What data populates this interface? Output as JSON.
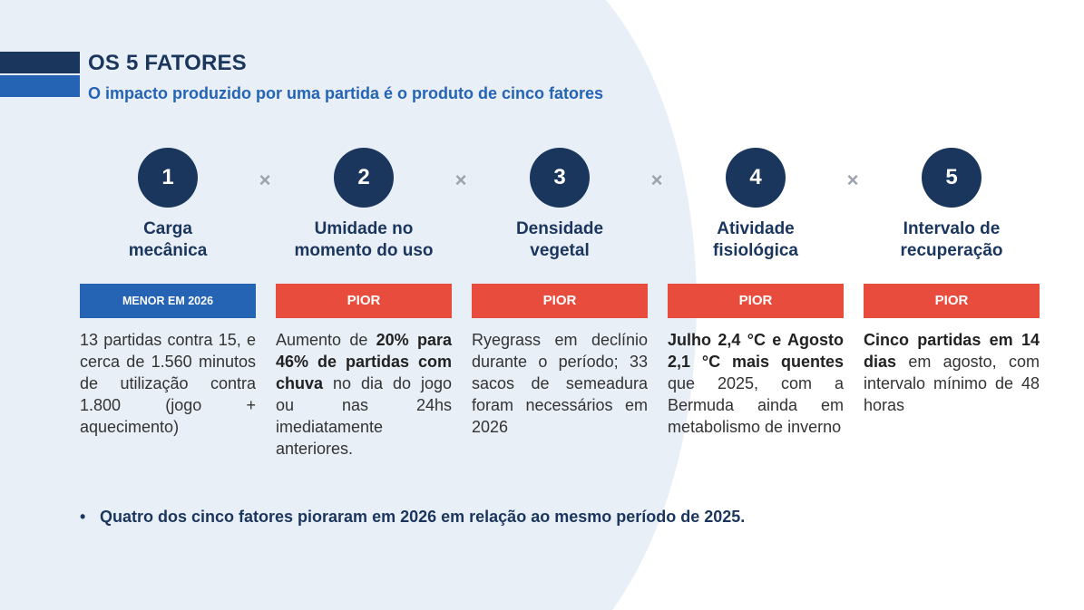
{
  "header": {
    "title": "OS 5 FATORES",
    "subtitle": "O impacto produzido por uma partida é o produto de cinco fatores"
  },
  "colors": {
    "navy": "#1b365d",
    "blue": "#2563b5",
    "red": "#e84c3d",
    "bg_light": "#e9eff7"
  },
  "operator": "×",
  "factors": [
    {
      "number": "1",
      "name_l1": "Carga",
      "name_l2": "mecânica",
      "badge": "MENOR EM 2026",
      "desc": [
        "13 partidas contra 15, e cerca de 1.560 minutos de utilização contra 1.800 (jogo + aquecimento)"
      ]
    },
    {
      "number": "2",
      "name_l1": "Umidade no",
      "name_l2": "momento do uso",
      "badge": "PIOR",
      "desc": [
        "Aumento de ",
        "20% para 46% de partidas com chuva",
        " no dia do jogo ou nas 24hs imediatamente anteriores."
      ]
    },
    {
      "number": "3",
      "name_l1": "Densidade",
      "name_l2": "vegetal",
      "badge": "PIOR",
      "desc": [
        "Ryegrass em declínio durante o período; 33 sacos de semeadura foram necessários em 2026"
      ]
    },
    {
      "number": "4",
      "name_l1": "Atividade",
      "name_l2": "fisiológica",
      "badge": "PIOR",
      "desc": [
        "Julho 2,4 °C e Agosto 2,1 °C mais quentes",
        " que 2025, com a Bermuda ainda em metabolismo de inverno"
      ]
    },
    {
      "number": "5",
      "name_l1": "Intervalo de",
      "name_l2": "recuperação",
      "badge": "PIOR",
      "desc": [
        "Cinco partidas em 14 dias",
        " em agosto, com intervalo mínimo de 48 horas"
      ]
    }
  ],
  "conclusion": {
    "bullet": "•",
    "text": "Quatro dos cinco fatores pioraram em 2026 em relação ao mesmo período de 2025."
  }
}
